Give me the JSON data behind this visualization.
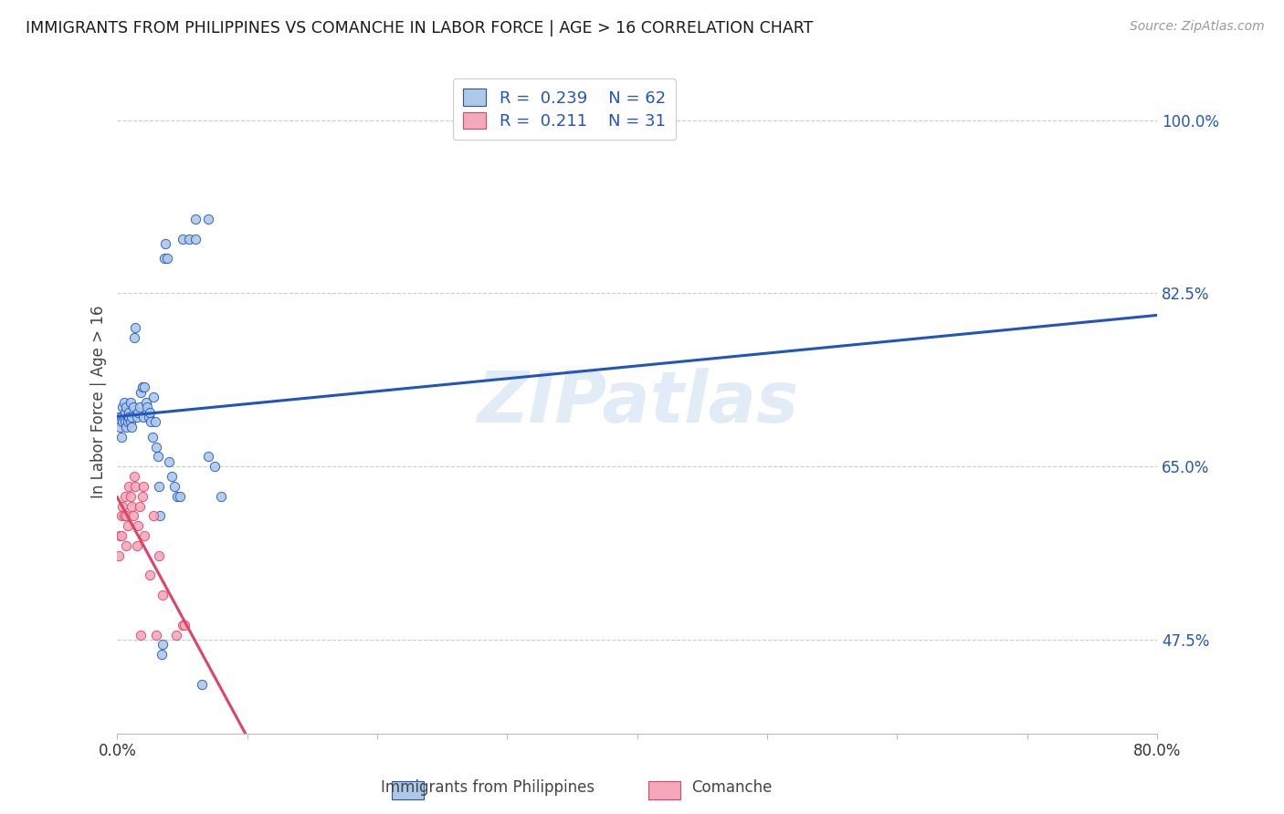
{
  "title": "IMMIGRANTS FROM PHILIPPINES VS COMANCHE IN LABOR FORCE | AGE > 16 CORRELATION CHART",
  "source": "Source: ZipAtlas.com",
  "ylabel": "In Labor Force | Age > 16",
  "ytick_labels": [
    "47.5%",
    "65.0%",
    "82.5%",
    "100.0%"
  ],
  "ytick_values": [
    0.475,
    0.65,
    0.825,
    1.0
  ],
  "xlim": [
    0.0,
    0.8
  ],
  "ylim": [
    0.38,
    1.05
  ],
  "legend_r1": "0.239",
  "legend_n1": "62",
  "legend_r2": "0.211",
  "legend_n2": "31",
  "philippines_color": "#adc8e8",
  "comanche_color": "#f4a8bc",
  "philippines_line_color": "#2255bb",
  "comanche_line_color": "#dd4466",
  "philippines_x": [
    0.001,
    0.002,
    0.002,
    0.003,
    0.003,
    0.004,
    0.004,
    0.005,
    0.005,
    0.006,
    0.006,
    0.007,
    0.007,
    0.008,
    0.008,
    0.009,
    0.009,
    0.01,
    0.01,
    0.011,
    0.011,
    0.012,
    0.013,
    0.014,
    0.015,
    0.016,
    0.017,
    0.018,
    0.019,
    0.02,
    0.021,
    0.022,
    0.023,
    0.024,
    0.025,
    0.026,
    0.027,
    0.028,
    0.029,
    0.03,
    0.031,
    0.032,
    0.033,
    0.034,
    0.035,
    0.036,
    0.037,
    0.038,
    0.04,
    0.042,
    0.044,
    0.046,
    0.048,
    0.05,
    0.055,
    0.06,
    0.065,
    0.07,
    0.075,
    0.08,
    0.06,
    0.07
  ],
  "philippines_y": [
    0.7,
    0.695,
    0.69,
    0.7,
    0.68,
    0.71,
    0.695,
    0.715,
    0.7,
    0.705,
    0.695,
    0.71,
    0.69,
    0.7,
    0.695,
    0.705,
    0.7,
    0.695,
    0.715,
    0.7,
    0.69,
    0.71,
    0.78,
    0.79,
    0.7,
    0.705,
    0.71,
    0.725,
    0.73,
    0.7,
    0.73,
    0.715,
    0.71,
    0.7,
    0.705,
    0.695,
    0.68,
    0.72,
    0.695,
    0.67,
    0.66,
    0.63,
    0.6,
    0.46,
    0.47,
    0.86,
    0.875,
    0.86,
    0.655,
    0.64,
    0.63,
    0.62,
    0.62,
    0.88,
    0.88,
    0.9,
    0.43,
    0.66,
    0.65,
    0.62,
    0.88,
    0.9
  ],
  "comanche_x": [
    0.001,
    0.002,
    0.003,
    0.003,
    0.004,
    0.005,
    0.006,
    0.007,
    0.007,
    0.008,
    0.009,
    0.01,
    0.011,
    0.012,
    0.013,
    0.014,
    0.015,
    0.016,
    0.017,
    0.018,
    0.019,
    0.02,
    0.021,
    0.025,
    0.028,
    0.03,
    0.032,
    0.035,
    0.045,
    0.05,
    0.052
  ],
  "comanche_y": [
    0.56,
    0.58,
    0.6,
    0.58,
    0.61,
    0.6,
    0.62,
    0.6,
    0.57,
    0.59,
    0.63,
    0.62,
    0.61,
    0.6,
    0.64,
    0.63,
    0.57,
    0.59,
    0.61,
    0.48,
    0.62,
    0.63,
    0.58,
    0.54,
    0.6,
    0.48,
    0.56,
    0.52,
    0.48,
    0.49,
    0.49
  ],
  "watermark": "ZIPatlas",
  "background_color": "#ffffff",
  "grid_color": "#cccccc"
}
